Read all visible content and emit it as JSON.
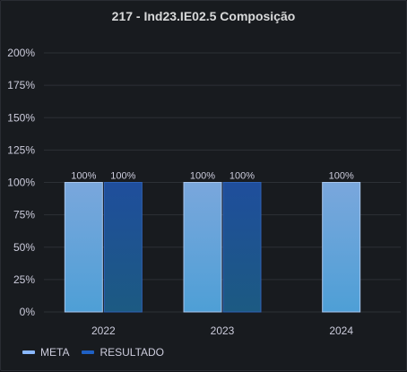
{
  "panel": {
    "title": "217 - Ind23.IE02.5 Composição"
  },
  "colors": {
    "background": "#181b1f",
    "grid": "#2c3036",
    "text": "#ccccdc",
    "meta_top": "#7aa7dc",
    "meta_bottom": "#4e9fd6",
    "meta_stroke": "#a7c6ee",
    "resultado_top": "#1f4e9c",
    "resultado_bottom": "#1c5a82",
    "resultado_stroke": "#2f62b5",
    "legend_meta": "#8ab8ff",
    "legend_resultado": "#1f60c4"
  },
  "chart_data": {
    "type": "bar",
    "categories": [
      "2022",
      "2023",
      "2024"
    ],
    "series": [
      {
        "name": "META",
        "values": [
          100,
          100,
          100
        ],
        "labels": [
          "100%",
          "100%",
          "100%"
        ]
      },
      {
        "name": "RESULTADO",
        "values": [
          100,
          100,
          null
        ],
        "labels": [
          "100%",
          "100%",
          ""
        ]
      }
    ],
    "ylim": [
      0,
      200
    ],
    "yticks": [
      0,
      25,
      50,
      75,
      100,
      125,
      150,
      175,
      200
    ],
    "ytick_labels": [
      "0%",
      "25%",
      "50%",
      "75%",
      "100%",
      "125%",
      "150%",
      "175%",
      "200%"
    ],
    "grid": true,
    "legend": "bottom-left"
  }
}
